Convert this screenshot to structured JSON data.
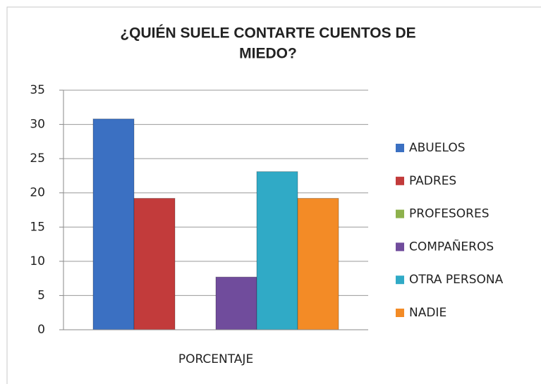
{
  "chart_data": {
    "type": "bar",
    "title": [
      "¿QUIÉN SUELE CONTARTE CUENTOS DE",
      "MIEDO?"
    ],
    "categories": [
      "PORCENTAJE"
    ],
    "series": [
      {
        "name": "ABUELOS",
        "color": "#3b70c2",
        "values": [
          30.8
        ]
      },
      {
        "name": "PADRES",
        "color": "#c23b3b",
        "values": [
          19.2
        ]
      },
      {
        "name": "PROFESORES",
        "color": "#8db14c",
        "values": [
          0
        ]
      },
      {
        "name": "COMPAÑEROS",
        "color": "#704c9c",
        "values": [
          7.7
        ]
      },
      {
        "name": "OTRA PERSONA",
        "color": "#30aac6",
        "values": [
          23.1
        ]
      },
      {
        "name": "NADIE",
        "color": "#f38b26",
        "values": [
          19.2
        ]
      }
    ],
    "ylim": [
      0,
      35
    ],
    "yticks": [
      0,
      5,
      10,
      15,
      20,
      25,
      30,
      35
    ],
    "grid": true,
    "legend": "right"
  }
}
